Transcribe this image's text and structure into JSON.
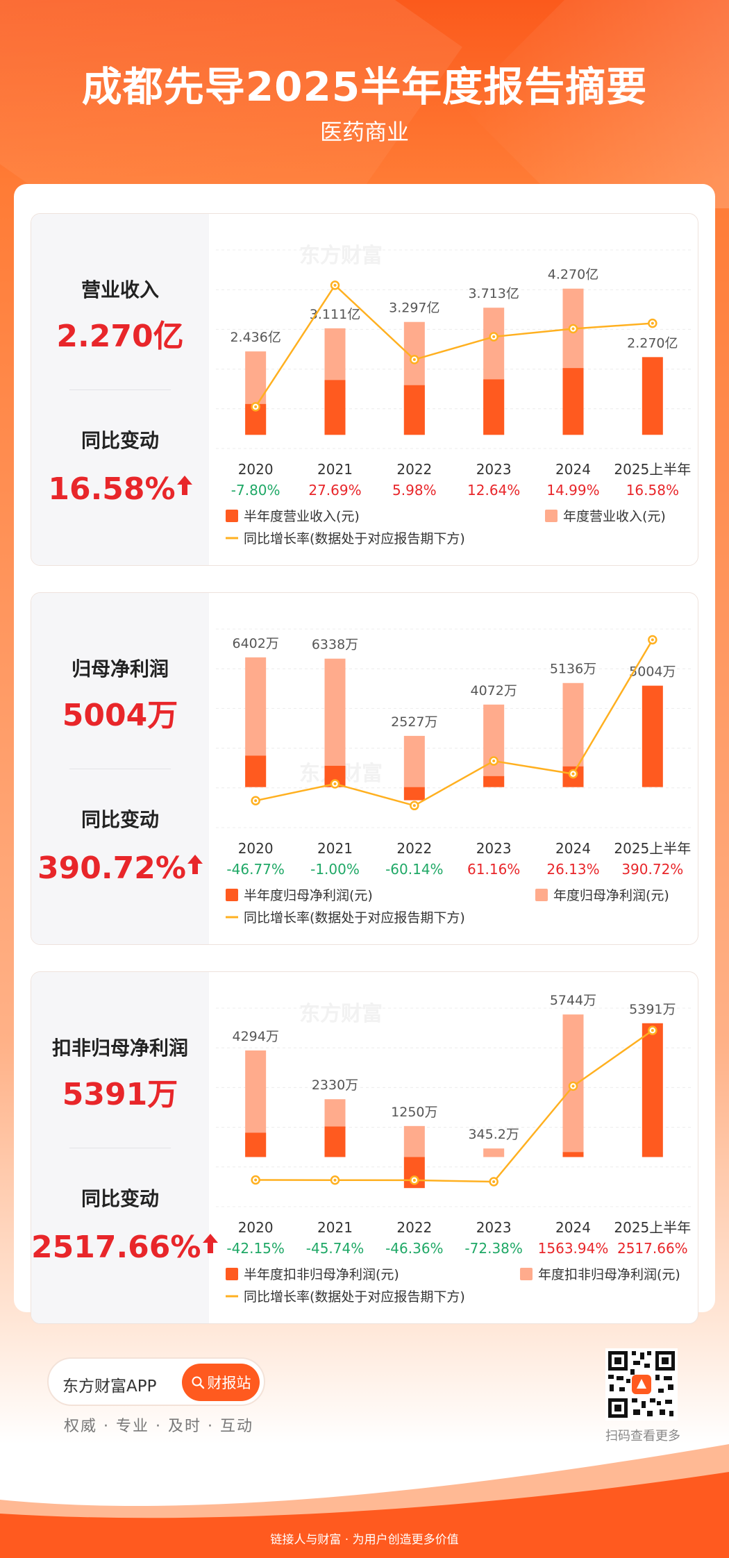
{
  "header": {
    "title": "成都先导2025半年度报告摘要",
    "subtitle": "医药商业"
  },
  "colors": {
    "half_year_bar": "#ff5a1f",
    "annual_bar": "#ffab8c",
    "yoy_line": "#ffb020",
    "positive": "#e8262a",
    "negative": "#1fa866",
    "brand_orange": "#ff5a1f"
  },
  "watermark": "东方财富",
  "sections": [
    {
      "kpi_label": "营业收入",
      "kpi_value": "2.270亿",
      "change_label": "同比变动",
      "change_value": "16.58%",
      "change_direction": "up"
    },
    {
      "kpi_label": "归母净利润",
      "kpi_value": "5004万",
      "change_label": "同比变动",
      "change_value": "390.72%",
      "change_direction": "up"
    },
    {
      "kpi_label": "扣非归母净利润",
      "kpi_value": "5391万",
      "change_label": "同比变动",
      "change_value": "2517.66%",
      "change_direction": "up"
    }
  ],
  "chart_data": [
    {
      "type": "bar",
      "categories": [
        "2020",
        "2021",
        "2022",
        "2023",
        "2024",
        "2025上半年"
      ],
      "series": [
        {
          "name": "半年度营业收入(元)",
          "values": [
            0.9,
            1.6,
            1.45,
            1.62,
            1.95,
            2.27
          ]
        },
        {
          "name": "年度营业收入(元)",
          "values": [
            2.436,
            3.111,
            3.297,
            3.713,
            4.27,
            null
          ]
        },
        {
          "name": "同比增长率(数据处于对应报告期下方)",
          "values": [
            -7.8,
            27.69,
            5.98,
            12.64,
            14.99,
            16.58
          ]
        }
      ],
      "bar_labels": [
        "2.436亿",
        "3.111亿",
        "3.297亿",
        "3.713亿",
        "4.270亿",
        "2.270亿"
      ],
      "yoy_labels": [
        "-7.80%",
        "27.69%",
        "5.98%",
        "12.64%",
        "14.99%",
        "16.58%"
      ],
      "unit": "亿",
      "ylim": [
        -0.4,
        5.4
      ],
      "line_ylim": [
        -20,
        38
      ]
    },
    {
      "type": "bar",
      "categories": [
        "2020",
        "2021",
        "2022",
        "2023",
        "2024",
        "2025上半年"
      ],
      "series": [
        {
          "name": "半年度归母净利润(元)",
          "values": [
            1550,
            1050,
            -650,
            540,
            1020,
            5004
          ]
        },
        {
          "name": "年度归母净利润(元)",
          "values": [
            6402,
            6338,
            2527,
            4072,
            5136,
            null
          ]
        },
        {
          "name": "同比增长率(数据处于对应报告期下方)",
          "values": [
            -46.77,
            -1.0,
            -60.14,
            61.16,
            26.13,
            390.72
          ]
        }
      ],
      "bar_labels": [
        "6402万",
        "6338万",
        "2527万",
        "4072万",
        "5136万",
        "5004万"
      ],
      "yoy_labels": [
        "-46.77%",
        "-1.00%",
        "-60.14%",
        "61.16%",
        "26.13%",
        "390.72%"
      ],
      "unit": "万",
      "ylim": [
        -2000,
        7800
      ],
      "line_ylim": [
        -120,
        420
      ]
    },
    {
      "type": "bar",
      "categories": [
        "2020",
        "2021",
        "2022",
        "2023",
        "2024",
        "2025上半年"
      ],
      "series": [
        {
          "name": "半年度扣非归母净利润(元)",
          "values": [
            980,
            1230,
            -1250,
            0,
            200,
            5391
          ]
        },
        {
          "name": "年度扣非归母净利润(元)",
          "values": [
            4294,
            2330,
            1250,
            345.2,
            5744,
            null
          ]
        },
        {
          "name": "同比增长率(数据处于对应报告期下方)",
          "values": [
            -42.15,
            -45.74,
            -46.36,
            -72.38,
            1563.94,
            2517.66
          ]
        }
      ],
      "bar_labels": [
        "4294万",
        "2330万",
        "1250万",
        "345.2万",
        "5744万",
        "5391万"
      ],
      "yoy_labels": [
        "-42.15%",
        "-45.74%",
        "-46.36%",
        "-72.38%",
        "1563.94%",
        "2517.66%"
      ],
      "unit": "万",
      "ylim": [
        -2000,
        6000
      ],
      "line_ylim": [
        -500,
        2900
      ]
    }
  ],
  "footer": {
    "brand_name": "东方财富APP",
    "brand_button": "财报站",
    "tagline": "权威 · 专业 · 及时 · 互动",
    "qr_caption": "扫码查看更多",
    "slogan": "链接人与财富 · 为用户创造更多价值"
  }
}
